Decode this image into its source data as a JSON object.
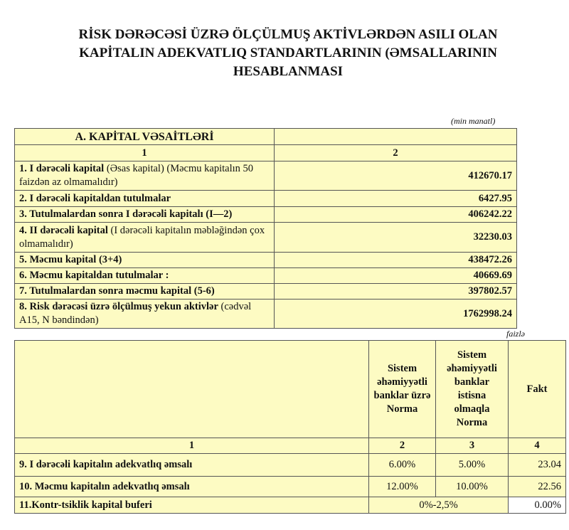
{
  "title": [
    "RİSK DƏRƏCƏSİ ÜZRƏ ÖLÇÜLMUŞ AKTİVLƏRDƏN ASILI OLAN",
    "KAPİTALIN ADEKVATLIQ STANDARTLARININ (ƏMSALLARININ",
    "HESABLANMASI"
  ],
  "table1": {
    "unit": "(min manatl)",
    "header": "A. KAPİTAL VƏSAİTLƏRİ",
    "col_numbers": [
      "1",
      "2"
    ],
    "rows": [
      {
        "bold": "1. I dərəcəli kapital",
        "normal": " (Əsas kapital) (Məcmu kapitalın 50 faizdən  az olmamalıdır)",
        "value": "412670.17"
      },
      {
        "bold": "2. I dərəcəli kapitaldan  tutulmalar",
        "normal": "",
        "value": "6427.95"
      },
      {
        "bold": "3. Tutulmalardan  sonra I dərəcəli kapitalı (I—2)",
        "normal": "",
        "value": "406242.22"
      },
      {
        "bold": "4. II dərəcəli  kapital",
        "normal": " (I dərəcəli  kapitalın məbləğindən çox olmamalıdır)",
        "value": "32230.03"
      },
      {
        "bold": "5. Məcmu kapital (3+4)",
        "normal": "",
        "value": "438472.26"
      },
      {
        "bold": "6. Məcmu kapitaldan tutulmalar :",
        "normal": "",
        "value": "40669.69"
      },
      {
        "bold": "7. Tutulmalardan  sonra məcmu kapital (5-6)",
        "normal": "",
        "value": "397802.57"
      },
      {
        "bold": "8. Risk dərəcəsi üzrə ölçülmuş  yekun aktivlər",
        "normal": " (cədvəl A15, N bəndindən)",
        "value": "1762998.24"
      }
    ]
  },
  "table2": {
    "unit": "faizlə",
    "headers": [
      "Sistem əhəmiyyətli banklar üzrə Norma",
      "Sistem əhəmiyyətli banklar istisna olmaqla Norma",
      "Fakt"
    ],
    "col_numbers": [
      "1",
      "2",
      "3",
      "4"
    ],
    "rows": [
      {
        "label": "9.  I dərəcəli  kapitalın  adekvatlıq əmsalı",
        "norm1": "6.00%",
        "norm2": "5.00%",
        "fact": "23.04"
      },
      {
        "label": "10. Məcmu kapitalın  adekvatlıq  əmsalı",
        "norm1": "12.00%",
        "norm2": "10.00%",
        "fact": "22.56"
      }
    ],
    "buffer": {
      "label": "11.Kontr-tsiklik kapital buferi",
      "norm": "0%-2,5%",
      "fact": "0.00%"
    }
  }
}
